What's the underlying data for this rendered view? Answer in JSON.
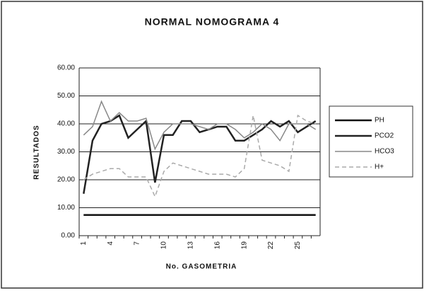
{
  "chart_data": {
    "type": "line",
    "title": "NORMAL NOMOGRAMA 4",
    "x_label": "No. GASOMETRIA",
    "y_label": "RESULTADOS",
    "categories": [
      1,
      null,
      null,
      4,
      null,
      null,
      7,
      null,
      null,
      10,
      null,
      null,
      13,
      null,
      null,
      16,
      null,
      null,
      19,
      null,
      null,
      22,
      null,
      null,
      25,
      null,
      null
    ],
    "series": [
      {
        "name": "PH",
        "color": "#111111",
        "values": [
          7.4,
          7.4,
          7.4,
          7.4,
          7.4,
          7.4,
          7.4,
          7.4,
          7.4,
          7.4,
          7.4,
          7.4,
          7.4,
          7.4,
          7.4,
          7.4,
          7.4,
          7.4,
          7.4,
          7.4,
          7.4,
          7.4,
          7.4,
          7.4,
          7.4,
          7.4,
          7.4
        ]
      },
      {
        "name": "PCO2",
        "color": "#222222",
        "values": [
          15,
          34,
          40,
          41,
          43,
          35,
          38,
          41,
          19,
          36,
          36,
          41,
          41,
          37,
          38,
          39,
          39,
          34,
          34,
          36,
          38,
          41,
          39,
          41,
          37,
          39,
          41
        ]
      },
      {
        "name": "HCO3",
        "color": "#888888",
        "values": [
          36,
          39,
          48,
          41,
          44,
          41,
          41,
          42,
          31,
          37,
          40,
          40,
          40,
          39,
          38,
          40,
          40,
          38,
          35,
          37,
          40,
          38,
          34,
          40,
          40,
          40,
          38
        ]
      },
      {
        "name": "H+",
        "color": "#aaaaaa",
        "dashed": true,
        "values": [
          20,
          22,
          23,
          24,
          24,
          21,
          21,
          21,
          14,
          23,
          26,
          25,
          24,
          23,
          22,
          22,
          22,
          21,
          24,
          43,
          27,
          26,
          25,
          23,
          43,
          41,
          40
        ]
      }
    ],
    "ylim": [
      0,
      60
    ],
    "yticks": [
      {
        "value": 0,
        "label": "0.00"
      },
      {
        "value": 10,
        "label": "10.00"
      },
      {
        "value": 20,
        "label": "20.00"
      },
      {
        "value": 30,
        "label": "30.00"
      },
      {
        "value": 40,
        "label": "40.00"
      },
      {
        "value": 50,
        "label": "50.00"
      },
      {
        "value": 60,
        "label": "60.00"
      }
    ],
    "grid": true,
    "legend": "right"
  }
}
